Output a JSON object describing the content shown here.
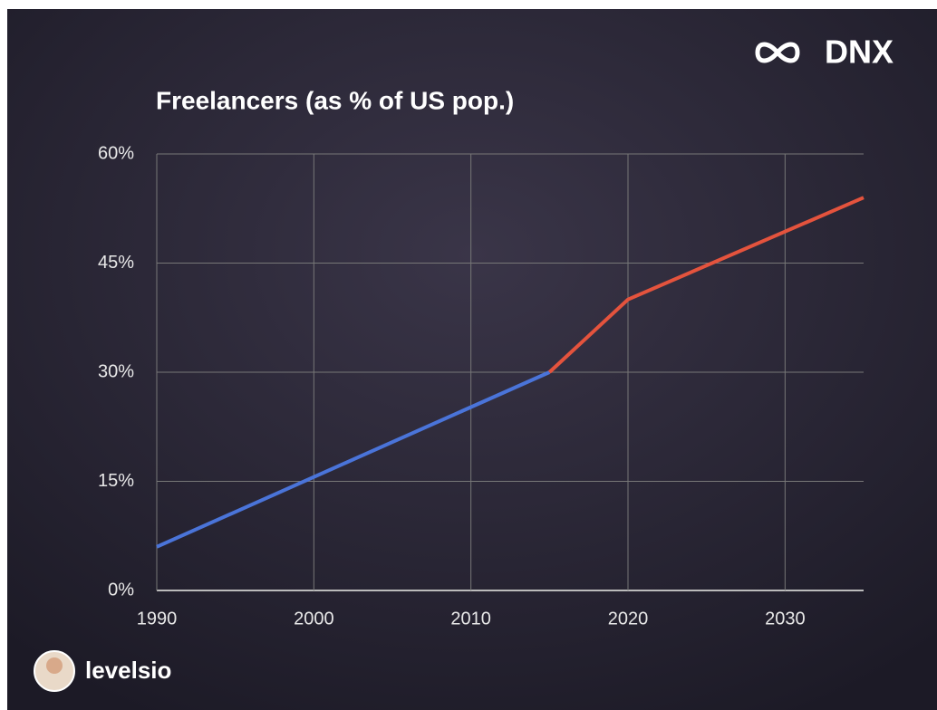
{
  "brand": "DNX",
  "user": "levelsio",
  "chart_data": {
    "type": "line",
    "title": "Freelancers (as % of US pop.)",
    "series": [
      {
        "color": "#4a74d9",
        "x": [
          1990,
          2015
        ],
        "values": [
          6,
          30
        ]
      },
      {
        "color": "#e4533d",
        "x": [
          2015,
          2020,
          2035
        ],
        "values": [
          30,
          40,
          54
        ]
      }
    ],
    "xlim": [
      1990,
      2035
    ],
    "xticks": [
      1990,
      2000,
      2010,
      2020,
      2030
    ],
    "ylim": [
      0,
      60
    ],
    "yticks": [
      {
        "value": 0,
        "label": "0%"
      },
      {
        "value": 15,
        "label": "15%"
      },
      {
        "value": 30,
        "label": "30%"
      },
      {
        "value": 45,
        "label": "45%"
      },
      {
        "value": 60,
        "label": "60%"
      }
    ],
    "grid": true
  }
}
